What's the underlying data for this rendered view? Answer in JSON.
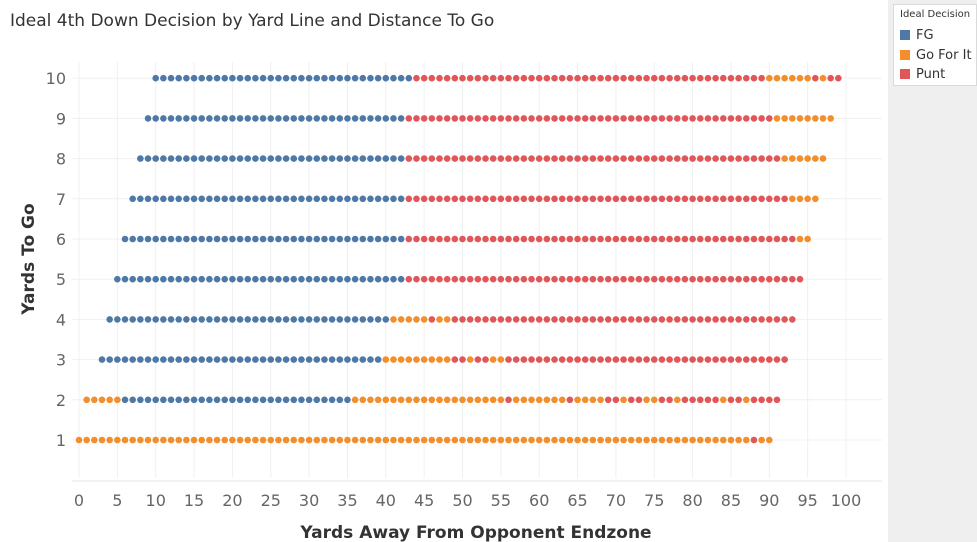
{
  "chart_data": {
    "type": "scatter",
    "title": "Ideal 4th Down Decision by Yard Line and Distance To Go",
    "xlabel": "Yards Away From Opponent Endzone",
    "ylabel": "Yards To Go",
    "xlim": [
      0,
      100
    ],
    "ylim": [
      1,
      10
    ],
    "xticks": [
      "0",
      "5",
      "10",
      "15",
      "20",
      "25",
      "30",
      "35",
      "40",
      "45",
      "50",
      "55",
      "60",
      "65",
      "70",
      "75",
      "80",
      "85",
      "90",
      "95",
      "100"
    ],
    "yticks": [
      "1",
      "2",
      "3",
      "4",
      "5",
      "6",
      "7",
      "8",
      "9",
      "10"
    ],
    "grid": true,
    "legend": {
      "title": "Ideal Decision",
      "placement": "right",
      "items": [
        {
          "name": "FG",
          "color": "#4e79a7"
        },
        {
          "name": "Go For It",
          "color": "#f28e2b"
        },
        {
          "name": "Punt",
          "color": "#e15759"
        }
      ]
    },
    "rows": [
      {
        "y": 10,
        "segments": [
          [
            "FG",
            10,
            43
          ],
          [
            "Punt",
            44,
            89
          ],
          [
            "Go For It",
            90,
            95
          ],
          [
            "Punt",
            96,
            96
          ],
          [
            "Go For It",
            97,
            97
          ],
          [
            "Punt",
            98,
            99
          ]
        ]
      },
      {
        "y": 9,
        "segments": [
          [
            "FG",
            9,
            42
          ],
          [
            "Punt",
            43,
            90
          ],
          [
            "Go For It",
            91,
            98
          ]
        ]
      },
      {
        "y": 8,
        "segments": [
          [
            "FG",
            8,
            42
          ],
          [
            "Punt",
            43,
            91
          ],
          [
            "Go For It",
            92,
            97
          ]
        ]
      },
      {
        "y": 7,
        "segments": [
          [
            "FG",
            7,
            42
          ],
          [
            "Punt",
            43,
            92
          ],
          [
            "Go For It",
            93,
            96
          ]
        ]
      },
      {
        "y": 6,
        "segments": [
          [
            "FG",
            6,
            42
          ],
          [
            "Punt",
            43,
            93
          ],
          [
            "Go For It",
            94,
            95
          ]
        ]
      },
      {
        "y": 5,
        "segments": [
          [
            "FG",
            5,
            42
          ],
          [
            "Punt",
            43,
            94
          ]
        ]
      },
      {
        "y": 4,
        "segments": [
          [
            "FG",
            4,
            40
          ],
          [
            "Go For It",
            41,
            45
          ],
          [
            "Punt",
            46,
            46
          ],
          [
            "Go For It",
            47,
            48
          ],
          [
            "Punt",
            49,
            93
          ]
        ]
      },
      {
        "y": 3,
        "segments": [
          [
            "FG",
            3,
            39
          ],
          [
            "Go For It",
            40,
            48
          ],
          [
            "Punt",
            49,
            50
          ],
          [
            "Go For It",
            51,
            51
          ],
          [
            "Punt",
            52,
            53
          ],
          [
            "Go For It",
            54,
            55
          ],
          [
            "Punt",
            56,
            92
          ]
        ]
      },
      {
        "y": 2,
        "segments": [
          [
            "Go For It",
            1,
            5
          ],
          [
            "FG",
            6,
            35
          ],
          [
            "Go For It",
            36,
            55
          ],
          [
            "Punt",
            56,
            56
          ],
          [
            "Go For It",
            57,
            63
          ],
          [
            "Punt",
            64,
            64
          ],
          [
            "Go For It",
            65,
            68
          ],
          [
            "Punt",
            69,
            70
          ],
          [
            "Go For It",
            71,
            71
          ],
          [
            "Punt",
            72,
            73
          ],
          [
            "Go For It",
            74,
            75
          ],
          [
            "Punt",
            76,
            77
          ],
          [
            "Go For It",
            78,
            78
          ],
          [
            "Punt",
            79,
            83
          ],
          [
            "Go For It",
            84,
            84
          ],
          [
            "Punt",
            85,
            86
          ],
          [
            "Go For It",
            87,
            87
          ],
          [
            "Punt",
            88,
            91
          ]
        ]
      },
      {
        "y": 1,
        "segments": [
          [
            "Go For It",
            0,
            87
          ],
          [
            "Punt",
            88,
            88
          ],
          [
            "Go For It",
            89,
            90
          ]
        ]
      }
    ]
  }
}
